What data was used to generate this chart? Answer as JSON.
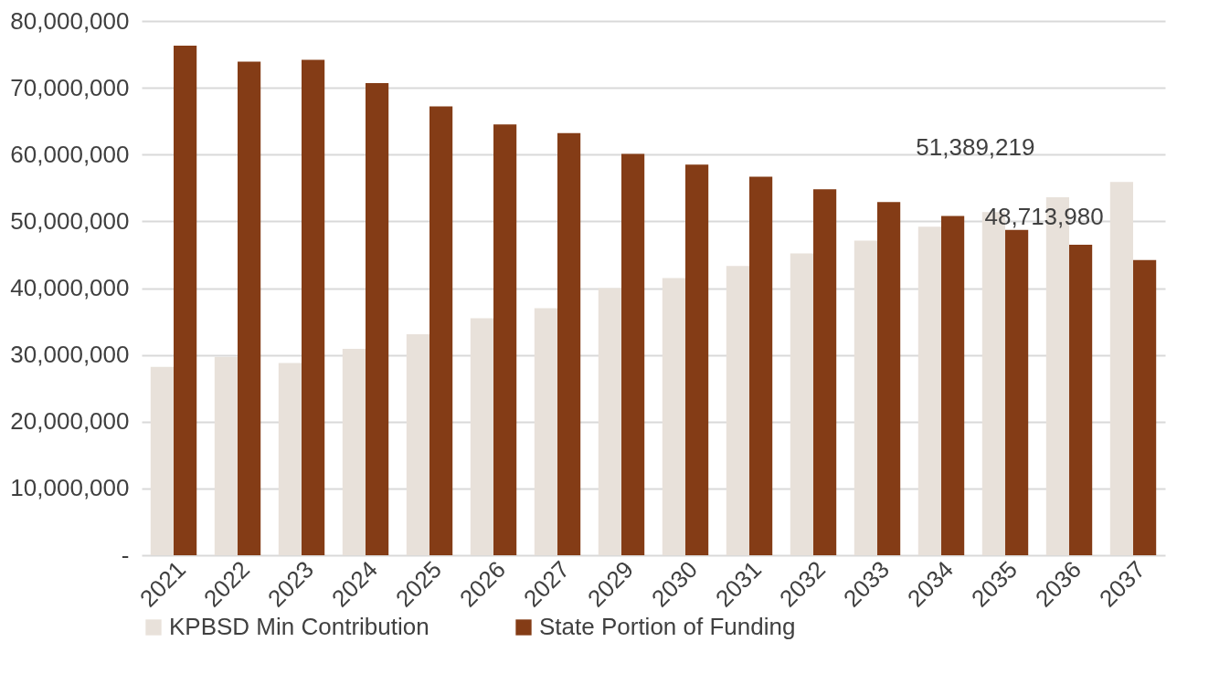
{
  "chart_data": {
    "type": "bar",
    "categories": [
      "2021",
      "2022",
      "2023",
      "2024",
      "2025",
      "2026",
      "2027",
      "2029",
      "2030",
      "2031",
      "2032",
      "2033",
      "2034",
      "2035",
      "2036",
      "2037"
    ],
    "series": [
      {
        "name": "KPBSD Min Contribution",
        "color": "#e8e1da",
        "values": [
          28200000,
          29700000,
          28800000,
          30900000,
          33100000,
          35500000,
          37000000,
          40000000,
          41500000,
          43300000,
          45200000,
          47100000,
          49200000,
          51389219,
          53600000,
          55900000
        ],
        "value_labels": [
          null,
          null,
          null,
          null,
          null,
          null,
          null,
          null,
          null,
          null,
          null,
          null,
          null,
          "51,389,219",
          null,
          null
        ]
      },
      {
        "name": "State Portion of Funding",
        "color": "#843c16",
        "values": [
          76300000,
          73900000,
          74200000,
          70700000,
          67200000,
          64500000,
          63200000,
          60100000,
          58500000,
          56700000,
          54800000,
          52900000,
          50800000,
          48713980,
          46500000,
          44200000
        ],
        "value_labels": [
          null,
          null,
          null,
          null,
          null,
          null,
          null,
          null,
          null,
          null,
          null,
          null,
          null,
          "48,713,980",
          null,
          null
        ]
      }
    ],
    "ylim": [
      0,
      80000000
    ],
    "yticks": [
      {
        "value": 0,
        "label": "-"
      },
      {
        "value": 10000000,
        "label": "10,000,000"
      },
      {
        "value": 20000000,
        "label": "20,000,000"
      },
      {
        "value": 30000000,
        "label": "30,000,000"
      },
      {
        "value": 40000000,
        "label": "40,000,000"
      },
      {
        "value": 50000000,
        "label": "50,000,000"
      },
      {
        "value": 60000000,
        "label": "60,000,000"
      },
      {
        "value": 70000000,
        "label": "70,000,000"
      },
      {
        "value": 80000000,
        "label": "80,000,000"
      }
    ],
    "grid": "y",
    "legend": "bottom"
  }
}
